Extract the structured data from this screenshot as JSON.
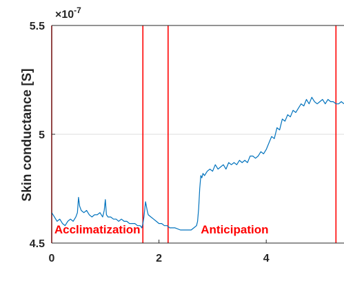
{
  "chart_data": {
    "type": "line",
    "title": "",
    "xlabel": "",
    "ylabel": "Skin conductance [S]",
    "xlim": [
      0,
      5.45
    ],
    "ylim": [
      4.5,
      5.5
    ],
    "y_exponent_label": "×10",
    "y_exponent_power": "-7",
    "xticks": [
      {
        "value": 0,
        "label": "0"
      },
      {
        "value": 2,
        "label": "2"
      },
      {
        "value": 4,
        "label": "4"
      }
    ],
    "yticks": [
      {
        "value": 4.5,
        "label": "4.5"
      },
      {
        "value": 5,
        "label": "5"
      },
      {
        "value": 5.5,
        "label": "5.5"
      }
    ],
    "grid": "horizontal",
    "line_color": "#0072bd",
    "marker_color": "#ff0000",
    "vertical_markers": [
      0,
      1.7,
      2.17,
      5.3
    ],
    "annotations": [
      {
        "text": "Acclimatization",
        "x": 0.05,
        "y": 4.545
      },
      {
        "text": "Anticipation",
        "x": 2.78,
        "y": 4.545
      }
    ],
    "series": [
      {
        "x": [
          0,
          0.05,
          0.1,
          0.15,
          0.2,
          0.25,
          0.3,
          0.35,
          0.4,
          0.45,
          0.48,
          0.5,
          0.52,
          0.55,
          0.6,
          0.65,
          0.7,
          0.75,
          0.8,
          0.85,
          0.9,
          0.95,
          0.98,
          1.0,
          1.02,
          1.05,
          1.1,
          1.15,
          1.2,
          1.25,
          1.3,
          1.35,
          1.4,
          1.45,
          1.5,
          1.55,
          1.6,
          1.65,
          1.68,
          1.7,
          1.72,
          1.75,
          1.78,
          1.8,
          1.85,
          1.9,
          1.95,
          2.0,
          2.05,
          2.1,
          2.15,
          2.2,
          2.3,
          2.4,
          2.5,
          2.6,
          2.65,
          2.7,
          2.72,
          2.74,
          2.76,
          2.78,
          2.8,
          2.82,
          2.85,
          2.9,
          2.95,
          3.0,
          3.05,
          3.1,
          3.15,
          3.2,
          3.25,
          3.3,
          3.35,
          3.4,
          3.45,
          3.5,
          3.55,
          3.6,
          3.65,
          3.7,
          3.75,
          3.8,
          3.85,
          3.9,
          3.95,
          4.0,
          4.05,
          4.1,
          4.15,
          4.2,
          4.25,
          4.3,
          4.35,
          4.4,
          4.45,
          4.5,
          4.55,
          4.6,
          4.65,
          4.7,
          4.75,
          4.8,
          4.85,
          4.9,
          4.95,
          5.0,
          5.05,
          5.1,
          5.15,
          5.2,
          5.25,
          5.3,
          5.35,
          5.4,
          5.45
        ],
        "y": [
          4.64,
          4.62,
          4.6,
          4.61,
          4.59,
          4.58,
          4.6,
          4.61,
          4.6,
          4.62,
          4.64,
          4.71,
          4.67,
          4.65,
          4.64,
          4.65,
          4.63,
          4.62,
          4.63,
          4.63,
          4.64,
          4.62,
          4.65,
          4.7,
          4.63,
          4.62,
          4.62,
          4.61,
          4.61,
          4.6,
          4.61,
          4.6,
          4.6,
          4.59,
          4.59,
          4.59,
          4.58,
          4.58,
          4.57,
          4.59,
          4.62,
          4.69,
          4.65,
          4.63,
          4.62,
          4.61,
          4.6,
          4.59,
          4.59,
          4.58,
          4.58,
          4.57,
          4.57,
          4.56,
          4.56,
          4.56,
          4.57,
          4.58,
          4.6,
          4.66,
          4.75,
          4.81,
          4.8,
          4.82,
          4.81,
          4.83,
          4.84,
          4.83,
          4.86,
          4.84,
          4.85,
          4.86,
          4.84,
          4.87,
          4.86,
          4.87,
          4.86,
          4.88,
          4.87,
          4.88,
          4.87,
          4.9,
          4.9,
          4.89,
          4.9,
          4.92,
          4.91,
          4.93,
          4.96,
          4.99,
          4.98,
          5.03,
          5.02,
          5.07,
          5.06,
          5.09,
          5.08,
          5.11,
          5.1,
          5.12,
          5.14,
          5.13,
          5.16,
          5.14,
          5.17,
          5.15,
          5.14,
          5.15,
          5.16,
          5.14,
          5.16,
          5.15,
          5.15,
          5.14,
          5.14,
          5.15,
          5.14
        ]
      }
    ]
  }
}
